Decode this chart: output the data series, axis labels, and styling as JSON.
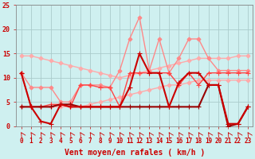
{
  "background_color": "#cff0f0",
  "grid_color": "#aacccc",
  "xlabel": "Vent moyen/en rafales ( km/h )",
  "xlim": [
    -0.5,
    23.5
  ],
  "ylim": [
    0,
    25
  ],
  "yticks": [
    0,
    5,
    10,
    15,
    20,
    25
  ],
  "xticks": [
    0,
    1,
    2,
    3,
    4,
    5,
    6,
    7,
    8,
    9,
    10,
    11,
    12,
    13,
    14,
    15,
    16,
    17,
    18,
    19,
    20,
    21,
    22,
    23
  ],
  "series": [
    {
      "x": [
        0,
        1,
        2,
        3,
        4,
        5,
        6,
        7,
        8,
        9,
        10,
        11,
        12,
        13,
        14,
        15,
        16,
        17,
        18,
        19,
        20,
        21,
        22,
        23
      ],
      "y": [
        14.5,
        14.5,
        14.0,
        13.5,
        13.0,
        12.5,
        12.0,
        11.5,
        11.0,
        10.5,
        10.0,
        10.5,
        11.0,
        11.5,
        12.0,
        12.5,
        13.0,
        13.5,
        14.0,
        14.0,
        14.0,
        14.0,
        14.5,
        14.5
      ],
      "color": "#ffaaaa",
      "lw": 1.0,
      "marker": "D",
      "ms": 2.5,
      "zorder": 2
    },
    {
      "x": [
        0,
        1,
        2,
        3,
        4,
        5,
        6,
        7,
        8,
        9,
        10,
        11,
        12,
        13,
        14,
        15,
        16,
        17,
        18,
        19,
        20,
        21,
        22,
        23
      ],
      "y": [
        4.0,
        4.0,
        4.0,
        4.0,
        4.0,
        4.0,
        4.0,
        4.5,
        5.0,
        5.5,
        6.0,
        6.5,
        7.0,
        7.5,
        8.0,
        8.5,
        8.5,
        9.0,
        9.5,
        9.5,
        9.5,
        9.5,
        9.5,
        9.5
      ],
      "color": "#ffaaaa",
      "lw": 1.0,
      "marker": "D",
      "ms": 2.5,
      "zorder": 2
    },
    {
      "x": [
        0,
        1,
        2,
        3,
        4,
        5,
        6,
        7,
        8,
        9,
        10,
        11,
        12,
        13,
        14,
        15,
        16,
        17,
        18,
        19,
        20,
        21,
        22,
        23
      ],
      "y": [
        11.0,
        8.0,
        8.0,
        8.0,
        5.0,
        5.0,
        8.5,
        8.5,
        8.5,
        8.0,
        11.5,
        18.0,
        22.5,
        11.5,
        18.0,
        11.0,
        14.0,
        18.0,
        18.0,
        14.0,
        11.5,
        11.5,
        11.5,
        11.5
      ],
      "color": "#ff8888",
      "lw": 1.0,
      "marker": "D",
      "ms": 2.5,
      "zorder": 3
    },
    {
      "x": [
        0,
        1,
        2,
        3,
        4,
        5,
        6,
        7,
        8,
        9,
        10,
        11,
        12,
        13,
        14,
        15,
        16,
        17,
        18,
        19,
        20,
        21,
        22,
        23
      ],
      "y": [
        11.0,
        4.0,
        4.0,
        4.5,
        4.5,
        4.0,
        8.5,
        8.5,
        8.0,
        8.0,
        4.0,
        11.0,
        11.0,
        11.0,
        11.0,
        11.0,
        8.5,
        11.0,
        8.5,
        11.0,
        11.0,
        11.0,
        11.0,
        11.0
      ],
      "color": "#ff4444",
      "lw": 1.0,
      "marker": "+",
      "ms": 4,
      "zorder": 3
    },
    {
      "x": [
        0,
        1,
        2,
        3,
        4,
        5,
        6,
        7,
        8,
        9,
        10,
        11,
        12,
        13,
        14,
        15,
        16,
        17,
        18,
        19,
        20,
        21,
        22,
        23
      ],
      "y": [
        11.0,
        4.0,
        1.0,
        0.5,
        4.5,
        4.0,
        4.0,
        4.0,
        4.0,
        4.0,
        4.0,
        8.0,
        15.0,
        11.0,
        11.0,
        4.0,
        9.0,
        11.0,
        11.0,
        8.5,
        8.5,
        0.5,
        0.5,
        4.0
      ],
      "color": "#cc0000",
      "lw": 1.5,
      "marker": "+",
      "ms": 4,
      "zorder": 4
    },
    {
      "x": [
        0,
        1,
        2,
        3,
        4,
        5,
        6,
        7,
        8,
        9,
        10,
        11,
        12,
        13,
        14,
        15,
        16,
        17,
        18,
        19,
        20,
        21,
        22,
        23
      ],
      "y": [
        4.0,
        4.0,
        4.0,
        4.0,
        4.5,
        4.5,
        4.0,
        4.0,
        4.0,
        4.0,
        4.0,
        4.0,
        4.0,
        4.0,
        4.0,
        4.0,
        4.0,
        4.0,
        4.0,
        8.5,
        8.5,
        0.0,
        0.5,
        4.0
      ],
      "color": "#990000",
      "lw": 1.5,
      "marker": "+",
      "ms": 4,
      "zorder": 3
    }
  ],
  "arrow_color": "#cc0000",
  "tick_color": "#cc0000",
  "label_color": "#cc0000",
  "xlabel_fontsize": 7,
  "tick_fontsize": 5.5
}
